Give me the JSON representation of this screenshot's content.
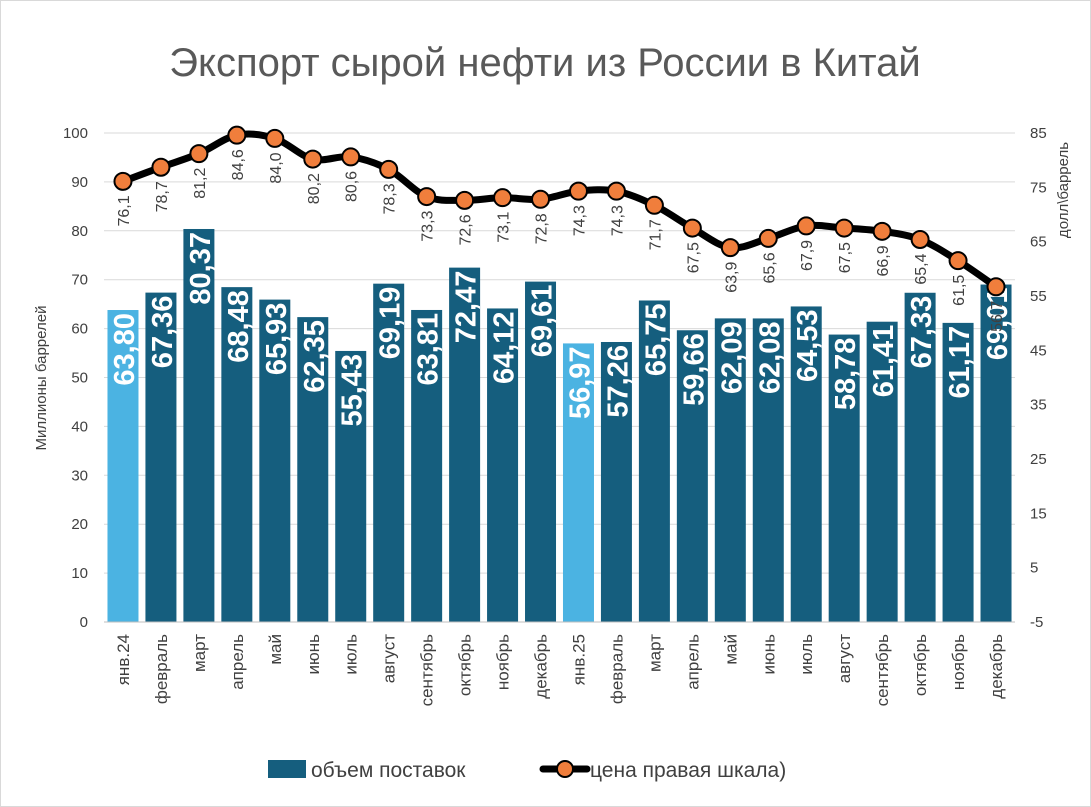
{
  "chart_data": {
    "type": "bar",
    "title": "Экспорт сырой нефти из России в Китай",
    "categories": [
      "янв.24",
      "февраль",
      "март",
      "апрель",
      "май",
      "июнь",
      "июль",
      "август",
      "сентябрь",
      "октябрь",
      "ноябрь",
      "декабрь",
      "янв.25",
      "февраль",
      "март",
      "апрель",
      "май",
      "июнь",
      "июль",
      "август",
      "сентябрь",
      "октябрь",
      "ноябрь",
      "декабрь"
    ],
    "ylabel": "Миллионы баррелей",
    "y2label": "долл\\баррель",
    "ylim": [
      0,
      100
    ],
    "yticks": [
      "0",
      "10",
      "20",
      "30",
      "40",
      "50",
      "60",
      "70",
      "80",
      "90",
      "100"
    ],
    "y2lim": [
      -5,
      85
    ],
    "y2ticks": [
      "-5",
      "5",
      "15",
      "25",
      "35",
      "45",
      "55",
      "65",
      "75",
      "85"
    ],
    "grid": true,
    "legend_position": "bottom",
    "series": [
      {
        "name": "объем поставок",
        "type": "bar",
        "axis": "left",
        "color": "#155e7e",
        "highlight_color": "#4bb3e2",
        "highlight_indices": [
          0,
          12
        ],
        "values": [
          63.8,
          67.36,
          80.37,
          68.48,
          65.93,
          62.35,
          55.43,
          69.19,
          63.81,
          72.47,
          64.12,
          69.61,
          56.97,
          57.26,
          65.75,
          59.66,
          62.09,
          62.08,
          64.53,
          58.78,
          61.41,
          67.33,
          61.17,
          69.01
        ],
        "labels": [
          "63,80",
          "67,36",
          "80,37",
          "68,48",
          "65,93",
          "62,35",
          "55,43",
          "69,19",
          "63,81",
          "72,47",
          "64,12",
          "69,61",
          "56,97",
          "57,26",
          "65,75",
          "59,66",
          "62,09",
          "62,08",
          "64,53",
          "58,78",
          "61,41",
          "67,33",
          "61,17",
          "69,01"
        ]
      },
      {
        "name": "цена правая шкала)",
        "type": "line",
        "axis": "right",
        "line_color": "#000000",
        "marker_color": "#f07e3c",
        "values": [
          76.1,
          78.7,
          81.2,
          84.6,
          84.0,
          80.2,
          80.6,
          78.3,
          73.3,
          72.6,
          73.1,
          72.8,
          74.3,
          74.3,
          71.7,
          67.5,
          63.9,
          65.6,
          67.9,
          67.5,
          66.9,
          65.4,
          61.5,
          56.7
        ],
        "labels": [
          "76,1",
          "78,7",
          "81,2",
          "84,6",
          "84,0",
          "80,2",
          "80,6",
          "78,3",
          "73,3",
          "72,6",
          "73,1",
          "72,8",
          "74,3",
          "74,3",
          "71,7",
          "67,5",
          "63,9",
          "65,6",
          "67,9",
          "67,5",
          "66,9",
          "65,4",
          "61,5",
          "56,7"
        ]
      }
    ]
  }
}
